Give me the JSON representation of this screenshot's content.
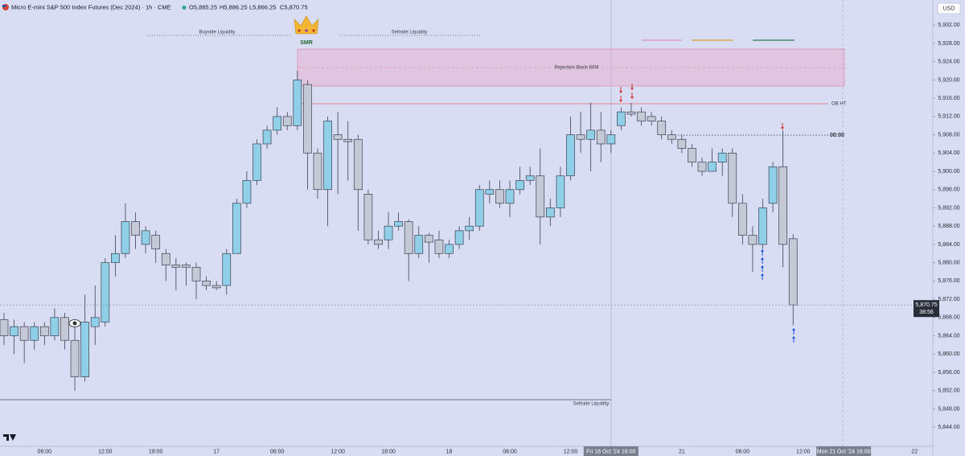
{
  "chart_data": {
    "type": "candlestick",
    "title": "Micro E-mini S&P 500 Index Futures (Dec 2024) · 1h · CME",
    "header_open": "O5,885.25",
    "header_high": "H5,886.25",
    "header_low": "L5,866.25",
    "header_close": "C5,870.75",
    "currency": "USD",
    "last_price_label": "5,870.75",
    "countdown": "38:56",
    "annotations": {
      "buyside": "Buyside Liquidity",
      "sellside_top": "Sellside Liquidity",
      "rejection_block": "Rejection Block 60M",
      "ob": "OB HT",
      "midnight": "00:00",
      "sellside_bottom": "Sellside Liquidity",
      "logo": "SMR"
    },
    "up_color": "#8fcfe8",
    "down_color": "#c5c9d6",
    "ylim": [
      5839.8,
      5937.5
    ],
    "yticks": [
      {
        "value": 5844,
        "label": "5,844.00"
      },
      {
        "value": 5848,
        "label": "5,848.00"
      },
      {
        "value": 5852,
        "label": "5,852.00"
      },
      {
        "value": 5856,
        "label": "5,856.00"
      },
      {
        "value": 5860,
        "label": "5,860.00"
      },
      {
        "value": 5864,
        "label": "5,864.00"
      },
      {
        "value": 5868,
        "label": "5,868.00"
      },
      {
        "value": 5872,
        "label": "5,872.00"
      },
      {
        "value": 5876,
        "label": "5,876.00"
      },
      {
        "value": 5880,
        "label": "5,880.00"
      },
      {
        "value": 5884,
        "label": "5,884.00"
      },
      {
        "value": 5888,
        "label": "5,888.00"
      },
      {
        "value": 5892,
        "label": "5,892.00"
      },
      {
        "value": 5896,
        "label": "5,896.00"
      },
      {
        "value": 5900,
        "label": "5,900.00"
      },
      {
        "value": 5904,
        "label": "5,904.00"
      },
      {
        "value": 5908,
        "label": "5,908.00"
      },
      {
        "value": 5912,
        "label": "5,912.00"
      },
      {
        "value": 5916,
        "label": "5,916.00"
      },
      {
        "value": 5920,
        "label": "5,920.00"
      },
      {
        "value": 5924,
        "label": "5,924.00"
      },
      {
        "value": 5928,
        "label": "5,928.00"
      },
      {
        "value": 5932,
        "label": "5,932.00"
      }
    ],
    "grid": false,
    "categories": [
      null,
      null,
      null,
      null,
      "06:00",
      null,
      null,
      null,
      null,
      null,
      "12:00",
      null,
      null,
      null,
      null,
      "18:00",
      null,
      null,
      null,
      null,
      null,
      "17",
      null,
      null,
      null,
      null,
      null,
      "06:00",
      null,
      null,
      null,
      null,
      null,
      "12:00",
      null,
      null,
      null,
      null,
      "18:00",
      null,
      null,
      null,
      null,
      null,
      "18",
      null,
      null,
      null,
      null,
      null,
      "06:00",
      null,
      null,
      null,
      null,
      null,
      "12:00",
      null,
      null,
      null,
      "Fri 18 Oct '24  16:00",
      null,
      null,
      null,
      null,
      null,
      null,
      "21",
      null,
      null,
      null,
      null,
      null,
      "06:00",
      null,
      null,
      null,
      null,
      null,
      "12:00",
      null,
      null,
      null,
      "Mon 21 Oct '24  16:00",
      null,
      null,
      null,
      null,
      null,
      null,
      "22",
      null
    ],
    "open": [
      5867.5,
      5864,
      5866,
      5863,
      5866,
      5864,
      5868,
      5863,
      5855,
      5866,
      5867,
      5880,
      5882,
      5889,
      5884,
      5886,
      5882,
      5879.5,
      5879.5,
      5879,
      5876,
      5875,
      5875,
      5882,
      5893,
      5898,
      5906,
      5909,
      5912,
      5910,
      5919,
      5904,
      5896,
      5908,
      5907,
      5907,
      5895,
      5885,
      5885,
      5888,
      5889,
      5882,
      5886,
      5885,
      5882,
      5884,
      5887,
      5888,
      5895,
      5896,
      5893,
      5896,
      5898,
      5899,
      5890,
      5892,
      5899,
      5908,
      5907,
      5909,
      5906,
      5910,
      5913,
      5913,
      5912,
      5911,
      5908,
      5907,
      5905,
      5902,
      5900,
      5902,
      5904,
      5893,
      5886,
      5884,
      5893,
      5901,
      5885.25,
      null,
      null,
      null,
      null,
      null,
      null,
      null,
      null,
      null,
      null,
      null,
      null,
      null
    ],
    "high": [
      5869,
      5867.5,
      5867,
      5867,
      5867,
      5870,
      5869,
      5866,
      5873,
      5875,
      5881,
      5886,
      5893,
      5891,
      5888,
      5887,
      5883,
      5881,
      5880,
      5880,
      5877,
      5876,
      5883,
      5894,
      5900,
      5907,
      5910,
      5914,
      5913,
      5922,
      5920,
      5905,
      5912,
      5913,
      5911,
      5908,
      5896,
      5887,
      5891,
      5891,
      5889.5,
      5888,
      5886.5,
      5887,
      5885,
      5888,
      5890,
      5897,
      5898,
      5898,
      5898,
      5901,
      5901,
      5905,
      5894,
      5901,
      5912,
      5913,
      5915,
      5913,
      5909,
      5914,
      5915,
      5914,
      5913,
      5912,
      5909,
      5908,
      5906,
      5903,
      5905,
      5905,
      5905,
      5895,
      5888,
      5894,
      5902,
      5909,
      5886.25,
      null,
      null,
      null,
      null,
      null,
      null,
      null,
      null,
      null,
      null,
      null,
      null,
      null
    ],
    "low": [
      5862,
      5860,
      5858,
      5861,
      5862,
      5863,
      5861,
      5852,
      5854,
      5862,
      5866,
      5877,
      5881,
      5883,
      5882,
      5880,
      5876,
      5874,
      5875,
      5872,
      5874,
      5874,
      5873,
      5882,
      5892,
      5897,
      5905,
      5908,
      5909,
      5909,
      5896,
      5894,
      5888,
      5895,
      5898,
      5887,
      5884,
      5883,
      5883,
      5887,
      5876,
      5881,
      5880,
      5881,
      5881,
      5883,
      5885,
      5887,
      5893,
      5892,
      5890,
      5895,
      5897,
      5884,
      5888,
      5890,
      5898,
      5904,
      5900,
      5902,
      5904,
      5909,
      5912,
      5910,
      5910,
      5907,
      5906,
      5904,
      5901,
      5899,
      5900,
      5899,
      5890,
      5884,
      5878,
      5883,
      5891,
      5879,
      5866.25,
      null,
      null,
      null,
      null,
      null,
      null,
      null,
      null,
      null,
      null,
      null,
      null,
      null
    ],
    "close": [
      5864,
      5866,
      5863,
      5866,
      5864,
      5868,
      5863,
      5855,
      5867,
      5868,
      5880,
      5882,
      5889,
      5886,
      5887,
      5883,
      5879.5,
      5879,
      5879,
      5876,
      5875,
      5874.5,
      5882,
      5893,
      5898,
      5906,
      5909,
      5912,
      5910,
      5920,
      5904,
      5896,
      5911,
      5907,
      5906.5,
      5896,
      5885,
      5884,
      5888,
      5889,
      5882,
      5886,
      5884.5,
      5882,
      5884,
      5887,
      5888,
      5896,
      5896,
      5893,
      5896,
      5898,
      5899,
      5890,
      5892,
      5899,
      5908,
      5907,
      5909,
      5906,
      5908,
      5913,
      5912.5,
      5911,
      5911,
      5908,
      5907,
      5905,
      5902,
      5900,
      5902,
      5904,
      5893,
      5886,
      5884,
      5892,
      5901,
      5884,
      5870.75,
      null,
      null,
      null,
      null,
      null,
      null,
      null,
      null,
      null,
      null,
      null,
      null,
      null
    ]
  }
}
